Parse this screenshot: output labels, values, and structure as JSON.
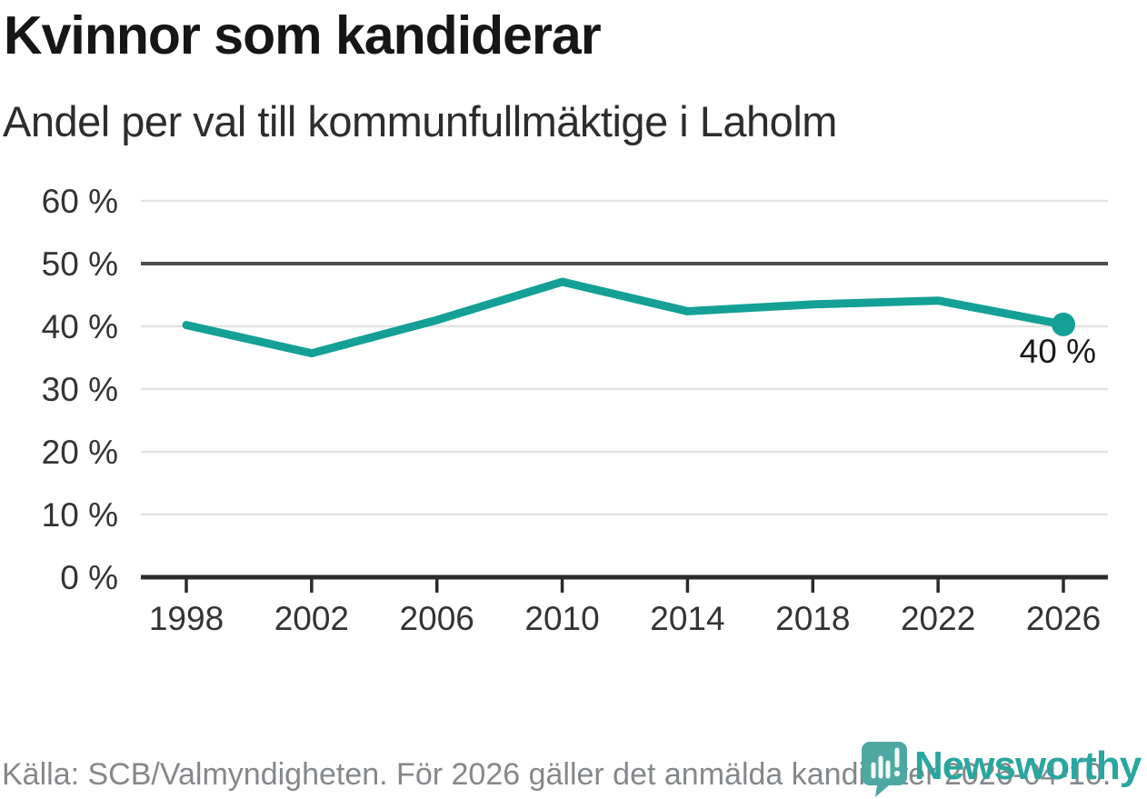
{
  "title": "Kvinnor som kandiderar",
  "subtitle": "Andel per val till kommunfullmäktige i Laholm",
  "footer": {
    "source_text": "Källa: SCB/Valmyndigheten. För 2026 gäller det anmälda kandidater 2026-04-10."
  },
  "logo": {
    "name": "Newsworthy",
    "icon": "newsworthy-speech-bubble-barchart-icon",
    "icon_color": "#4da8a2",
    "bar_color": "#f2f8f7",
    "text_color": "#2aa6a0"
  },
  "chart_data": {
    "type": "line",
    "x": [
      "1998",
      "2002",
      "2006",
      "2010",
      "2014",
      "2018",
      "2022",
      "2026"
    ],
    "values": [
      40.2,
      35.7,
      41.0,
      47.1,
      42.4,
      43.5,
      44.1,
      40.3
    ],
    "unit": "%",
    "ylim": [
      0,
      60
    ],
    "ytick_step": 10,
    "ytick_labels": [
      "0 %",
      "10 %",
      "20 %",
      "30 %",
      "40 %",
      "50 %",
      "60 %"
    ],
    "reference_line_value": 50,
    "last_point_label": "40 %",
    "grid": "horizontal",
    "legend": "none",
    "line_color": "#14a096",
    "gridline_color": "#e3e3e3",
    "reference_line_color": "#4d4d4d",
    "axis_color": "#2b2b2b",
    "axis_text_color": "#333333",
    "label_text_color": "#1a1a1a"
  }
}
